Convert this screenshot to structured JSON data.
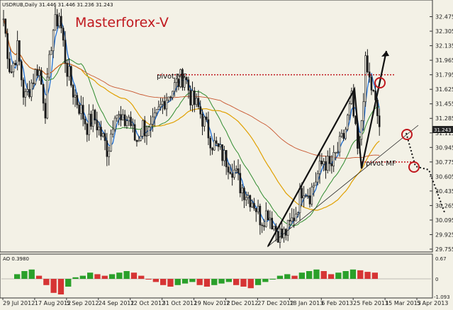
{
  "header": {
    "symbol_info": "USDRUB,Daily  31.446 31.446 31.236 31.243",
    "watermark": "Masterforex-V"
  },
  "annotations": {
    "pivot_top": "pivot MF",
    "pivot_bottom": "pivot MF"
  },
  "current_price": "31.243",
  "indicator": {
    "label": "AO 0.3980",
    "ticks": [
      "0.67",
      "0",
      "-1.093"
    ]
  },
  "colors": {
    "background": "#f3f1e6",
    "watermark": "#c0181e",
    "candle_up": "#1a1a1a",
    "candle_down": "#1a1a1a",
    "ma_fast": "#1f6fd6",
    "ma_mid": "#2e8b2e",
    "ma_slow": "#e0a000",
    "ma_long": "#c8552e",
    "pivot_line": "#c0181e",
    "ao_up": "#2aa02a",
    "ao_down": "#d63434",
    "arrow": "#000000",
    "circle": "#c0181e"
  },
  "chart_data": {
    "type": "candlestick",
    "symbol": "USDRUB",
    "timeframe": "Daily",
    "y_ticks": [
      "32.475",
      "32.305",
      "32.135",
      "31.965",
      "31.795",
      "31.625",
      "31.455",
      "31.285",
      "31.115",
      "30.945",
      "30.775",
      "30.605",
      "30.435",
      "30.265",
      "30.095",
      "29.925",
      "29.755"
    ],
    "ylim": [
      29.755,
      32.645
    ],
    "x_ticks": [
      "29 Jul 2012",
      "17 Aug 2012",
      "5 Sep 2012",
      "24 Sep 2012",
      "12 Oct 2012",
      "31 Oct 2012",
      "19 Nov 2012",
      "7 Dec 2012",
      "27 Dec 2012",
      "18 Jan 2013",
      "6 Feb 2013",
      "25 Feb 2013",
      "15 Mar 2013",
      "5 Apr 2013"
    ],
    "close_path": [
      32.45,
      31.8,
      32.1,
      31.5,
      31.7,
      31.9,
      31.4,
      32.3,
      32.5,
      31.9,
      31.6,
      31.4,
      31.2,
      31.3,
      31.1,
      30.9,
      31.4,
      31.2,
      31.3,
      31.0,
      31.2,
      31.1,
      31.3,
      31.5,
      31.6,
      31.7,
      31.8,
      31.5,
      31.4,
      31.2,
      31.0,
      30.9,
      30.8,
      30.7,
      30.5,
      30.4,
      30.3,
      30.1,
      30.2,
      30.0,
      29.9,
      30.0,
      30.2,
      30.5,
      30.4,
      30.6,
      30.8,
      30.7,
      30.9,
      31.1,
      31.5,
      30.8,
      31.9,
      31.6,
      31.2
    ],
    "pivot_top_level": 31.795,
    "pivot_bottom_level": 30.775,
    "ao_values": [
      0.3,
      0.5,
      0.6,
      0.2,
      -0.4,
      -0.9,
      -1.0,
      -0.5,
      0.1,
      0.2,
      0.4,
      0.3,
      0.2,
      0.3,
      0.4,
      0.5,
      0.4,
      0.2,
      0.0,
      -0.2,
      -0.4,
      -0.5,
      -0.4,
      -0.3,
      -0.2,
      -0.4,
      -0.5,
      -0.4,
      -0.3,
      -0.2,
      -0.4,
      -0.5,
      -0.6,
      -0.4,
      -0.2,
      0.0,
      0.2,
      0.3,
      0.2,
      0.4,
      0.5,
      0.6,
      0.5,
      0.3,
      0.4,
      0.5,
      0.6,
      0.55,
      0.45,
      0.4
    ]
  }
}
